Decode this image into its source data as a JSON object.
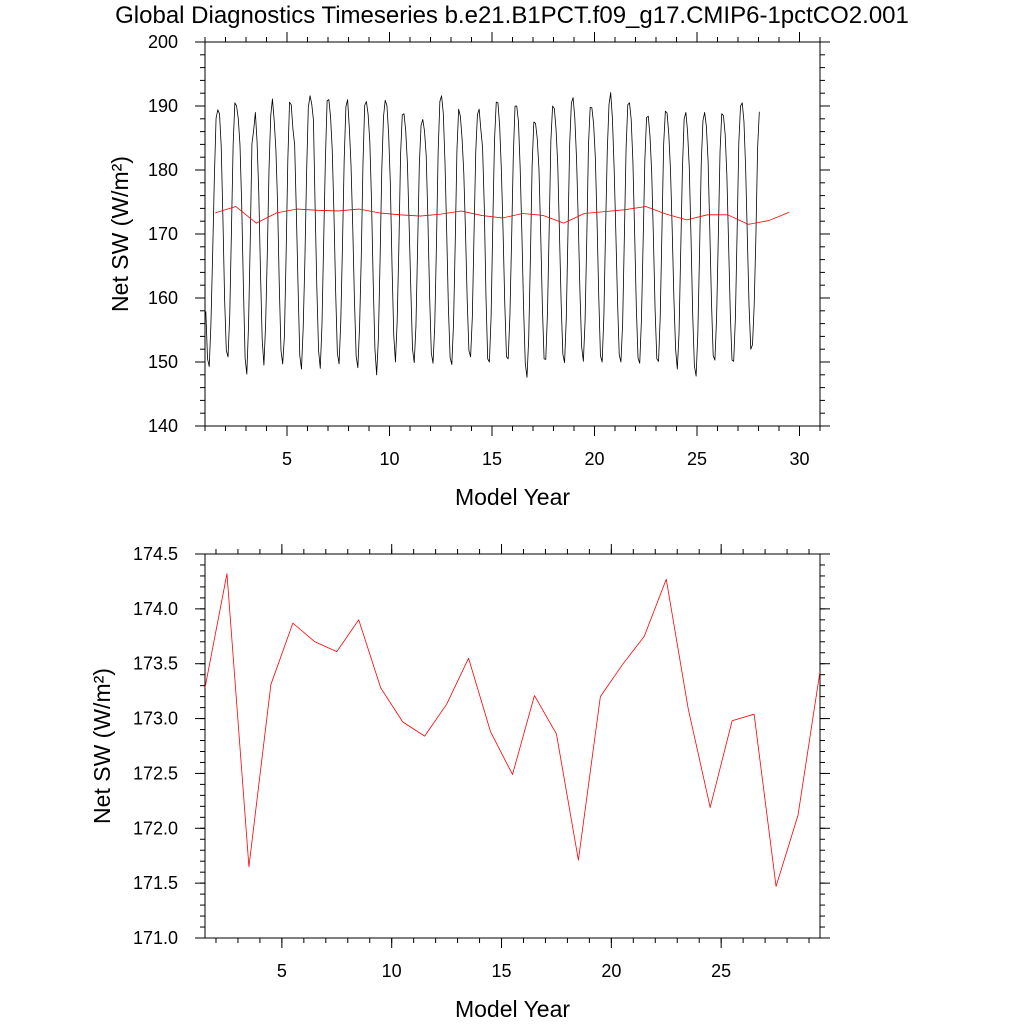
{
  "figure": {
    "title": "Global Diagnostics Timeseries b.e21.B1PCT.f09_g17.CMIP6-1pctCO2.001"
  },
  "colors": {
    "monthly": "#000000",
    "annual": "#ff0000",
    "axis": "#000000",
    "background": "#ffffff"
  },
  "chart_data": [
    {
      "type": "line",
      "xlabel": "Model Year",
      "ylabel": "Net SW (W/m²)",
      "xlim": [
        1,
        31
      ],
      "ylim": [
        140,
        200
      ],
      "xticks": [
        5,
        10,
        15,
        20,
        25,
        30
      ],
      "yticks": [
        140,
        150,
        160,
        170,
        180,
        190,
        200
      ],
      "grid": false,
      "series": [
        {
          "color": "#000000",
          "style": "monthly seasonal cycle",
          "x_start": 1.04,
          "x_step": 0.0833333,
          "values": [
            157.9,
            150.5,
            149.3,
            156.0,
            166.9,
            178.8,
            188.1,
            189.4,
            188.8,
            183.8,
            172.6,
            159.8,
            151.8,
            150.8,
            157.3,
            170.5,
            184.0,
            190.5,
            190.0,
            188.0,
            183.9,
            174.6,
            161.8,
            150.6,
            148.1,
            155.7,
            168.9,
            184.1,
            186.2,
            189.0,
            184.4,
            176.4,
            164.0,
            153.5,
            149.5,
            155.8,
            167.0,
            180.2,
            188.5,
            191.1,
            187.8,
            183.3,
            174.9,
            162.0,
            151.8,
            149.7,
            154.0,
            166.8,
            181.5,
            190.6,
            190.2,
            186.4,
            183.9,
            173.3,
            161.7,
            151.0,
            148.9,
            155.3,
            166.0,
            179.7,
            189.8,
            191.6,
            190.3,
            187.8,
            174.0,
            161.4,
            151.8,
            149.0,
            155.9,
            169.0,
            181.7,
            190.8,
            191.0,
            188.4,
            183.1,
            173.2,
            161.0,
            151.4,
            149.7,
            156.3,
            168.3,
            181.6,
            189.9,
            191.0,
            186.6,
            180.7,
            171.1,
            159.7,
            150.9,
            149.1,
            155.5,
            166.5,
            181.1,
            190.1,
            190.7,
            188.7,
            184.4,
            175.1,
            162.2,
            152.0,
            148.0,
            153.6,
            165.9,
            180.0,
            188.3,
            190.9,
            190.1,
            185.7,
            178.0,
            165.0,
            154.2,
            150.0,
            156.3,
            167.9,
            182.4,
            188.6,
            188.8,
            186.2,
            181.1,
            171.6,
            161.3,
            152.0,
            149.9,
            155.6,
            168.3,
            181.0,
            187.0,
            187.9,
            186.1,
            182.3,
            172.3,
            160.4,
            151.4,
            149.8,
            155.6,
            168.3,
            182.9,
            190.7,
            191.6,
            188.9,
            181.2,
            170.3,
            158.5,
            150.7,
            149.6,
            156.0,
            168.7,
            183.1,
            189.5,
            188.4,
            184.9,
            179.6,
            170.4,
            159.7,
            151.8,
            150.8,
            157.0,
            170.1,
            182.8,
            188.7,
            189.5,
            186.3,
            183.5,
            174.3,
            160.1,
            150.5,
            150.0,
            157.1,
            171.8,
            184.7,
            190.6,
            190.5,
            186.9,
            180.0,
            170.4,
            159.1,
            150.8,
            150.5,
            157.2,
            169.2,
            182.3,
            190.0,
            190.0,
            187.6,
            180.4,
            170.2,
            158.5,
            149.8,
            147.6,
            153.6,
            166.2,
            180.6,
            187.5,
            187.3,
            184.9,
            180.2,
            170.4,
            158.8,
            150.5,
            150.4,
            157.8,
            170.9,
            184.7,
            190.0,
            189.6,
            186.4,
            180.9,
            170.3,
            159.2,
            151.2,
            149.9,
            156.8,
            170.3,
            184.1,
            190.5,
            191.3,
            188.1,
            181.8,
            172.2,
            161.0,
            152.4,
            150.1,
            156.4,
            169.3,
            184.0,
            189.8,
            189.7,
            187.2,
            182.0,
            172.1,
            160.3,
            151.0,
            150.0,
            157.1,
            170.7,
            183.0,
            190.2,
            192.1,
            188.1,
            180.4,
            170.3,
            159.5,
            151.1,
            150.0,
            156.1,
            169.6,
            183.3,
            190.2,
            190.5,
            187.9,
            181.3,
            170.4,
            158.6,
            150.6,
            149.8,
            156.6,
            168.9,
            181.6,
            188.2,
            188.4,
            185.3,
            179.6,
            169.5,
            158.1,
            150.5,
            150.1,
            157.1,
            170.5,
            184.0,
            189.2,
            188.9,
            185.6,
            180.0,
            170.7,
            159.9,
            152.0,
            148.9,
            154.5,
            167.5,
            180.3,
            188.0,
            189.0,
            186.0,
            180.4,
            169.6,
            157.4,
            149.4,
            147.8,
            154.4,
            167.0,
            181.0,
            187.7,
            189.0,
            186.8,
            181.5,
            170.8,
            159.3,
            151.0,
            150.3,
            157.0,
            169.6,
            182.8,
            188.8,
            188.5,
            185.6,
            179.2,
            168.6,
            157.7,
            150.3,
            150.1,
            156.9,
            170.3,
            184.3,
            190.0,
            190.5,
            187.6,
            180.2,
            169.4,
            158.7,
            152.0,
            152.7,
            158.9,
            169.7,
            183.5,
            189.1
          ]
        },
        {
          "color": "#ff0000",
          "style": "annual mean",
          "x": [
            1.5,
            2.5,
            3.5,
            4.5,
            5.5,
            6.5,
            7.5,
            8.5,
            9.5,
            10.5,
            11.5,
            12.5,
            13.5,
            14.5,
            15.5,
            16.5,
            17.5,
            18.5,
            19.5,
            20.5,
            21.5,
            22.5,
            23.5,
            24.5,
            25.5,
            26.5,
            27.5,
            28.5,
            29.5
          ],
          "values": [
            173.3,
            174.3,
            171.7,
            173.3,
            173.9,
            173.7,
            173.6,
            173.9,
            173.3,
            173.0,
            172.8,
            173.1,
            173.6,
            172.9,
            172.5,
            173.2,
            172.9,
            171.7,
            173.2,
            173.5,
            173.8,
            174.3,
            173.1,
            172.2,
            173.0,
            173.0,
            171.5,
            172.1,
            173.4
          ]
        }
      ]
    },
    {
      "type": "line",
      "xlabel": "Model Year",
      "ylabel": "Net SW (W/m²)",
      "xlim": [
        1.5,
        29.5
      ],
      "ylim": [
        171.0,
        174.5
      ],
      "xticks": [
        5,
        10,
        15,
        20,
        25
      ],
      "yticks": [
        171.0,
        171.5,
        172.0,
        172.5,
        173.0,
        173.5,
        174.0,
        174.5
      ],
      "ytick_format": 1,
      "grid": false,
      "series": [
        {
          "color": "#ff0000",
          "style": "annual mean",
          "x": [
            1.5,
            2.5,
            3.5,
            4.5,
            5.5,
            6.5,
            7.5,
            8.5,
            9.5,
            10.5,
            11.5,
            12.5,
            13.5,
            14.5,
            15.5,
            16.5,
            17.5,
            18.5,
            19.5,
            20.5,
            21.5,
            22.5,
            23.5,
            24.5,
            25.5,
            26.5,
            27.5,
            28.5,
            29.5
          ],
          "values": [
            173.28,
            174.32,
            171.65,
            173.31,
            173.87,
            173.7,
            173.61,
            173.9,
            173.28,
            172.97,
            172.84,
            173.13,
            173.55,
            172.88,
            172.49,
            173.21,
            172.86,
            171.71,
            173.2,
            173.49,
            173.75,
            174.27,
            173.09,
            172.19,
            172.98,
            173.04,
            171.47,
            172.12,
            173.43
          ]
        }
      ]
    }
  ]
}
